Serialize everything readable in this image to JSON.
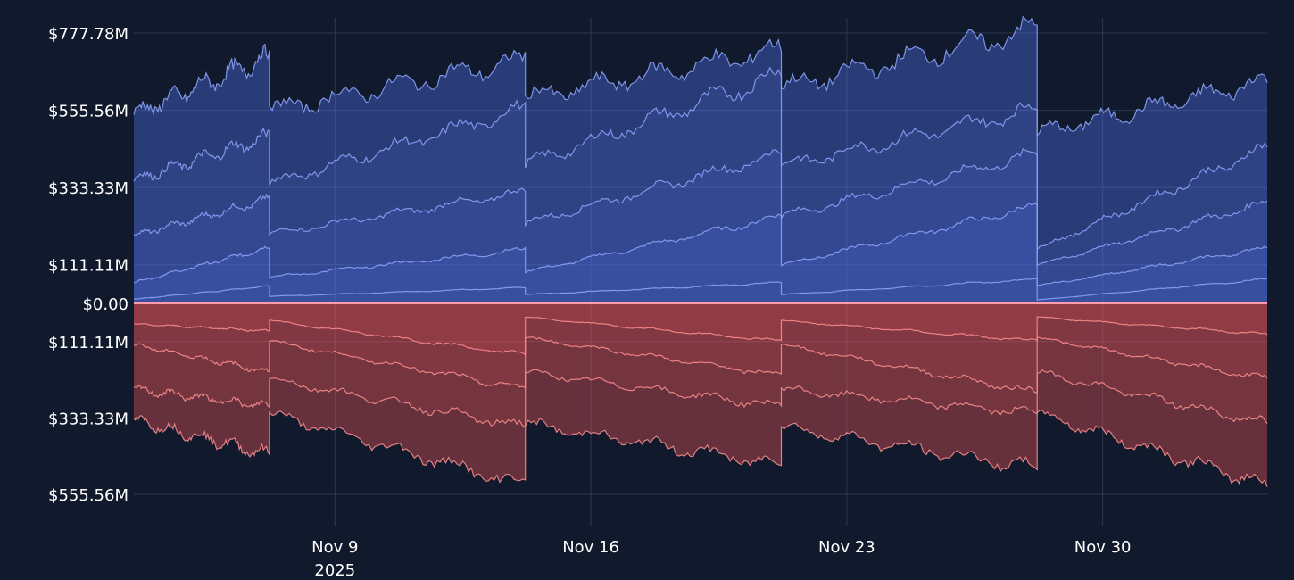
{
  "chart_data": {
    "type": "area",
    "title": "",
    "xlabel": "",
    "ylabel": "",
    "x_range": [
      "2025-11-03T12:00",
      "2025-12-04T12:00"
    ],
    "y_range": [
      -600000000,
      800000000
    ],
    "grid": true,
    "legend": "none",
    "y_ticks": [
      {
        "value": 777780000,
        "label": "$777.78M"
      },
      {
        "value": 555560000,
        "label": "$555.56M"
      },
      {
        "value": 333330000,
        "label": "$333.33M"
      },
      {
        "value": 111110000,
        "label": "$111.11M"
      },
      {
        "value": 0,
        "label": "$0.00"
      },
      {
        "value": -111110000,
        "label": "$111.11M"
      },
      {
        "value": -333330000,
        "label": "$333.33M"
      },
      {
        "value": -555560000,
        "label": "$555.56M"
      }
    ],
    "x_ticks": [
      {
        "date": "2025-11-09",
        "label": "Nov 9",
        "sublabel": "2025"
      },
      {
        "date": "2025-11-16",
        "label": "Nov 16",
        "sublabel": ""
      },
      {
        "date": "2025-11-23",
        "label": "Nov 23",
        "sublabel": ""
      },
      {
        "date": "2025-11-30",
        "label": "Nov 30",
        "sublabel": ""
      }
    ],
    "reset_dates": [
      "2025-11-03T12:00",
      "2025-11-07T05:00",
      "2025-11-14T05:00",
      "2025-11-21T05:00",
      "2025-11-28T05:00",
      "2025-12-04T12:00"
    ],
    "positive_stack": {
      "color": "#5a7bff",
      "segment_start_values": [
        [
          0,
          12000000,
          60000000,
          195000000,
          355000000,
          545000000
        ],
        [
          0,
          20000000,
          75000000,
          200000000,
          345000000,
          555000000
        ],
        [
          0,
          25000000,
          90000000,
          230000000,
          400000000,
          590000000
        ],
        [
          0,
          25000000,
          110000000,
          250000000,
          395000000,
          620000000
        ],
        [
          0,
          10000000,
          50000000,
          110000000,
          155000000,
          490000000
        ]
      ],
      "segment_end_values": [
        [
          0,
          50000000,
          160000000,
          300000000,
          480000000,
          710000000
        ],
        [
          0,
          45000000,
          155000000,
          320000000,
          560000000,
          700000000
        ],
        [
          0,
          60000000,
          250000000,
          430000000,
          660000000,
          730000000
        ],
        [
          0,
          70000000,
          280000000,
          430000000,
          560000000,
          790000000
        ],
        [
          0,
          70000000,
          160000000,
          290000000,
          450000000,
          640000000
        ]
      ]
    },
    "negative_stack": {
      "color": "#ff5a5a",
      "segment_start_values": [
        [
          0,
          -60000000,
          -120000000,
          -250000000,
          -340000000
        ],
        [
          0,
          -50000000,
          -110000000,
          -220000000,
          -320000000
        ],
        [
          0,
          -40000000,
          -100000000,
          -200000000,
          -350000000
        ],
        [
          0,
          -50000000,
          -120000000,
          -250000000,
          -360000000
        ],
        [
          0,
          -40000000,
          -100000000,
          -200000000,
          -320000000
        ]
      ],
      "segment_end_values": [
        [
          0,
          -80000000,
          -200000000,
          -300000000,
          -440000000
        ],
        [
          0,
          -150000000,
          -250000000,
          -360000000,
          -530000000
        ],
        [
          0,
          -110000000,
          -210000000,
          -300000000,
          -470000000
        ],
        [
          0,
          -110000000,
          -260000000,
          -320000000,
          -480000000
        ],
        [
          0,
          -90000000,
          -220000000,
          -350000000,
          -530000000
        ]
      ]
    }
  }
}
